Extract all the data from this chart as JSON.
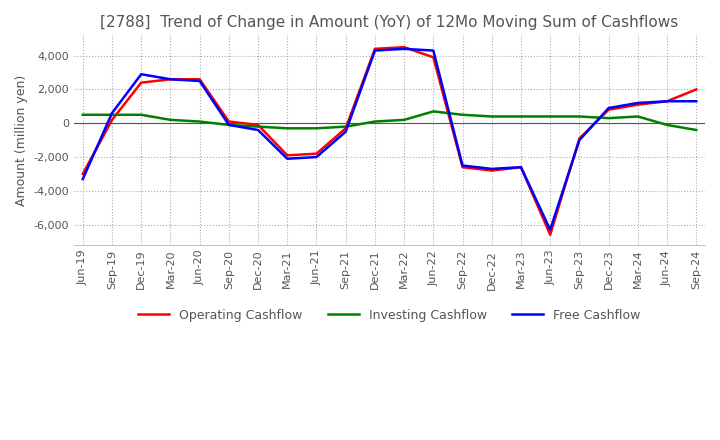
{
  "title": "[2788]  Trend of Change in Amount (YoY) of 12Mo Moving Sum of Cashflows",
  "ylabel": "Amount (million yen)",
  "xlabels": [
    "Jun-19",
    "Sep-19",
    "Dec-19",
    "Mar-20",
    "Jun-20",
    "Sep-20",
    "Dec-20",
    "Mar-21",
    "Jun-21",
    "Sep-21",
    "Dec-21",
    "Mar-22",
    "Jun-22",
    "Sep-22",
    "Dec-22",
    "Mar-23",
    "Jun-23",
    "Sep-23",
    "Dec-23",
    "Mar-24",
    "Jun-24",
    "Sep-24"
  ],
  "operating": [
    -3000,
    200,
    2400,
    2600,
    2600,
    100,
    -100,
    -1900,
    -1800,
    -300,
    4400,
    4500,
    3900,
    -2600,
    -2800,
    -2600,
    -6600,
    -900,
    800,
    1100,
    1300,
    2000
  ],
  "investing": [
    500,
    500,
    500,
    200,
    100,
    -100,
    -200,
    -300,
    -300,
    -200,
    100,
    200,
    700,
    500,
    400,
    400,
    400,
    400,
    300,
    400,
    -100,
    -400
  ],
  "free": [
    -3300,
    600,
    2900,
    2600,
    2500,
    -100,
    -400,
    -2100,
    -2000,
    -500,
    4300,
    4400,
    4300,
    -2500,
    -2700,
    -2600,
    -6300,
    -1000,
    900,
    1200,
    1300,
    1300
  ],
  "ylim": [
    -7200,
    5200
  ],
  "yticks": [
    -6000,
    -4000,
    -2000,
    0,
    2000,
    4000
  ],
  "operating_color": "#ff0000",
  "investing_color": "#008000",
  "free_color": "#0000ff",
  "grid_color": "#aaaaaa",
  "zero_line_color": "#555555",
  "background_color": "#ffffff",
  "title_color": "#555555",
  "title_fontsize": 11,
  "label_fontsize": 9,
  "tick_fontsize": 8,
  "line_width": 1.8
}
